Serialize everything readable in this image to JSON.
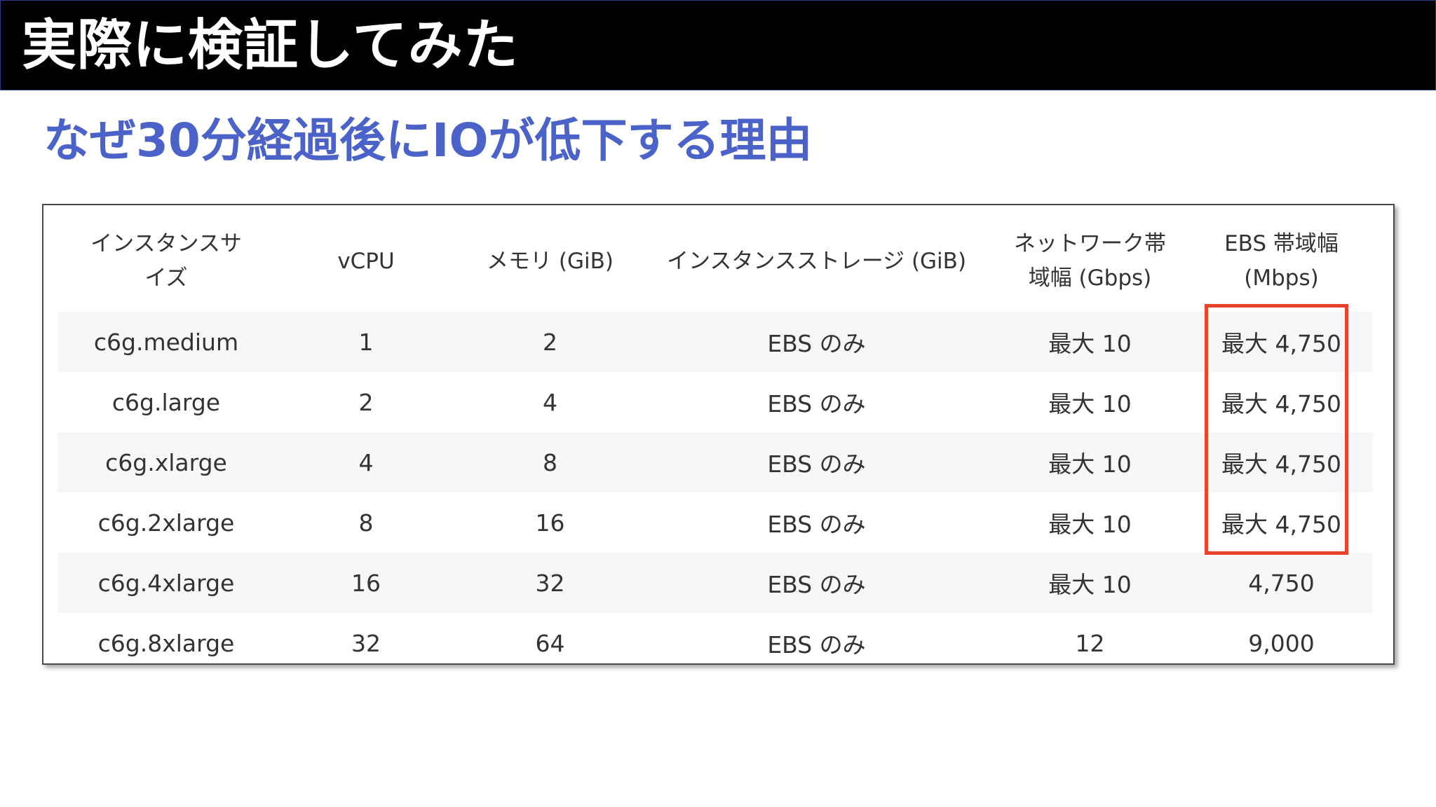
{
  "header": {
    "title": "実際に検証してみた"
  },
  "subtitle": "なぜ30分経過後にIOが低下する理由",
  "colors": {
    "header_bg": "#000000",
    "subtitle": "#4b63c9",
    "highlight": "#e8442b"
  },
  "table": {
    "columns": [
      "インスタンスサイズ",
      "vCPU",
      "メモリ (GiB)",
      "インスタンスストレージ (GiB)",
      "ネットワーク帯域幅 (Gbps)",
      "EBS 帯域幅 (Mbps)"
    ],
    "rows": [
      [
        "c6g.medium",
        "1",
        "2",
        "EBS のみ",
        "最大 10",
        "最大 4,750"
      ],
      [
        "c6g.large",
        "2",
        "4",
        "EBS のみ",
        "最大 10",
        "最大 4,750"
      ],
      [
        "c6g.xlarge",
        "4",
        "8",
        "EBS のみ",
        "最大 10",
        "最大 4,750"
      ],
      [
        "c6g.2xlarge",
        "8",
        "16",
        "EBS のみ",
        "最大 10",
        "最大 4,750"
      ],
      [
        "c6g.4xlarge",
        "16",
        "32",
        "EBS のみ",
        "最大 10",
        "4,750"
      ],
      [
        "c6g.8xlarge",
        "32",
        "64",
        "EBS のみ",
        "12",
        "9,000"
      ]
    ]
  }
}
